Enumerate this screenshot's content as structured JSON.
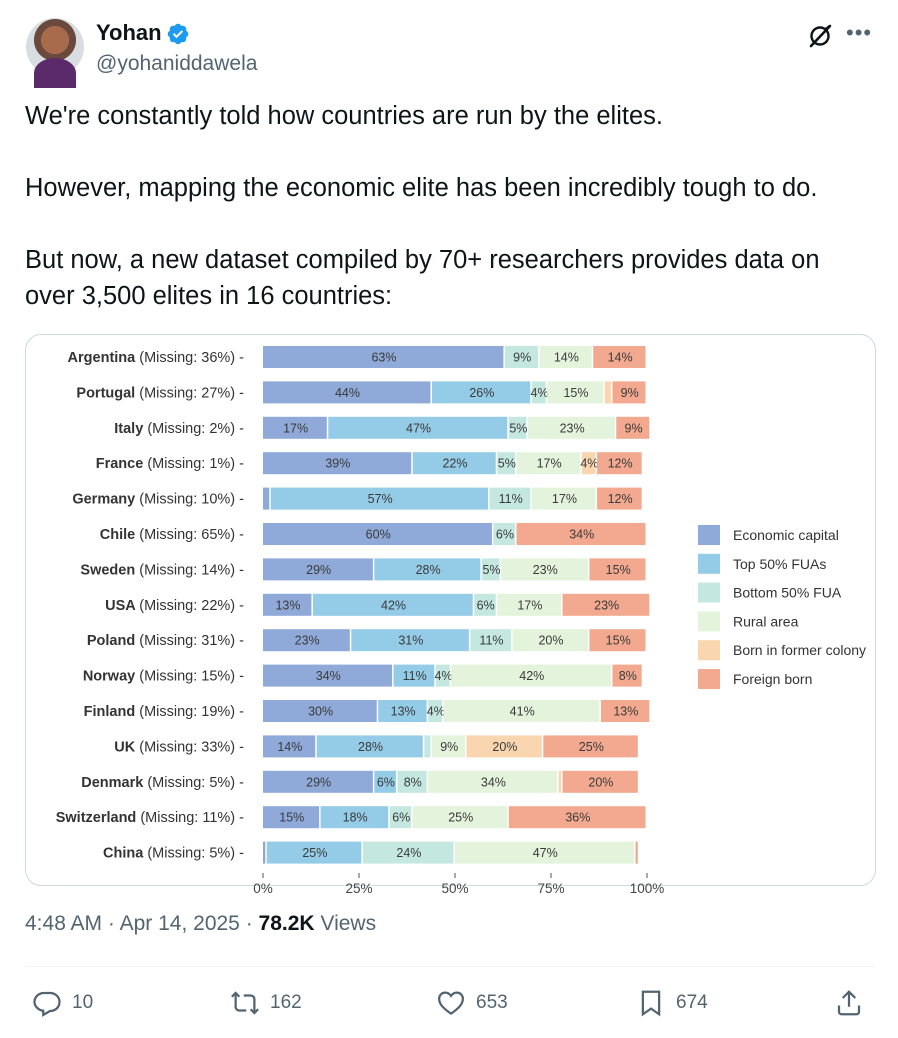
{
  "author": {
    "name": "Yohan",
    "handle": "@yohaniddawela",
    "verified_icon": "verified-badge-icon",
    "avatar": "avatar"
  },
  "tweet": {
    "paragraphs": [
      "We're constantly told how countries are run by the elites.",
      "However, mapping the economic elite has been incredibly tough to do.",
      "But now, a new dataset compiled by 70+ researchers provides data on over 3,500 elites in 16 countries:"
    ]
  },
  "meta": {
    "time": "4:48 AM",
    "sep1": "·",
    "date": "Apr 14, 2025",
    "sep2": "·",
    "views_count": "78.2K",
    "views_label": "Views"
  },
  "actions": {
    "replies": "10",
    "reposts": "162",
    "likes": "653",
    "bookmarks": "674"
  },
  "colors": {
    "Economic capital": "#8fa9d8",
    "Top 50% FUAs": "#94cbe6",
    "Bottom 50% FUA": "#c4e8df",
    "Rural area": "#e3f3dc",
    "Born in former colony": "#f9d6b0",
    "Foreign born": "#f2a98f"
  },
  "chart_data": {
    "type": "bar",
    "orientation": "horizontal",
    "stacked": true,
    "categories": [
      "Argentina (Missing: 36%)",
      "Portugal (Missing: 27%)",
      "Italy (Missing: 2%)",
      "France (Missing: 1%)",
      "Germany (Missing: 10%)",
      "Chile (Missing: 65%)",
      "Sweden (Missing: 14%)",
      "USA (Missing: 22%)",
      "Poland (Missing: 31%)",
      "Norway (Missing: 15%)",
      "Finland (Missing: 19%)",
      "UK (Missing: 33%)",
      "Denmark (Missing: 5%)",
      "Switzerland (Missing: 11%)",
      "China (Missing: 5%)"
    ],
    "country_names": [
      "Argentina",
      "Portugal",
      "Italy",
      "France",
      "Germany",
      "Chile",
      "Sweden",
      "USA",
      "Poland",
      "Norway",
      "Finland",
      "UK",
      "Denmark",
      "Switzerland",
      "China"
    ],
    "missing_labels": [
      "(Missing: 36%) -",
      "(Missing: 27%) -",
      "(Missing: 2%) -",
      "(Missing: 1%) -",
      "(Missing: 10%) -",
      "(Missing: 65%) -",
      "(Missing: 14%) -",
      "(Missing: 22%) -",
      "(Missing: 31%) -",
      "(Missing: 15%) -",
      "(Missing: 19%) -",
      "(Missing: 33%) -",
      "(Missing: 5%) -",
      "(Missing: 11%) -",
      "(Missing: 5%) -"
    ],
    "series": [
      {
        "name": "Economic capital",
        "values": [
          63,
          44,
          17,
          39,
          2,
          60,
          29,
          13,
          23,
          34,
          30,
          14,
          29,
          15,
          1
        ]
      },
      {
        "name": "Top 50% FUAs",
        "values": [
          0,
          26,
          47,
          22,
          57,
          0,
          28,
          42,
          31,
          11,
          13,
          28,
          6,
          18,
          25
        ]
      },
      {
        "name": "Bottom 50% FUA",
        "values": [
          9,
          4,
          5,
          5,
          11,
          6,
          5,
          6,
          11,
          4,
          4,
          2,
          8,
          6,
          24
        ]
      },
      {
        "name": "Rural area",
        "values": [
          14,
          15,
          23,
          17,
          17,
          0,
          23,
          17,
          20,
          42,
          41,
          9,
          34,
          25,
          47
        ]
      },
      {
        "name": "Born in former colony",
        "values": [
          0,
          2,
          0,
          4,
          0,
          0,
          0,
          0,
          0,
          0,
          0,
          20,
          1,
          0,
          0
        ]
      },
      {
        "name": "Foreign born",
        "values": [
          14,
          9,
          9,
          12,
          12,
          34,
          15,
          23,
          15,
          8,
          13,
          25,
          20,
          36,
          1
        ]
      }
    ],
    "data_labels": [
      [
        "63%",
        "",
        "9%",
        "14%",
        "",
        "14%"
      ],
      [
        "44%",
        "26%",
        "4%",
        "15%",
        "",
        "9%"
      ],
      [
        "17%",
        "47%",
        "5%",
        "23%",
        "",
        "9%"
      ],
      [
        "39%",
        "22%",
        "5%",
        "17%",
        "4%",
        "12%"
      ],
      [
        "",
        "57%",
        "11%",
        "17%",
        "",
        "12%"
      ],
      [
        "60%",
        "",
        "6%",
        "",
        "",
        "34%"
      ],
      [
        "29%",
        "28%",
        "5%",
        "23%",
        "",
        "15%"
      ],
      [
        "13%",
        "42%",
        "6%",
        "17%",
        "",
        "23%"
      ],
      [
        "23%",
        "31%",
        "11%",
        "20%",
        "",
        "15%"
      ],
      [
        "34%",
        "11%",
        "4%",
        "42%",
        "",
        "8%"
      ],
      [
        "30%",
        "13%",
        "4%",
        "41%",
        "",
        "13%"
      ],
      [
        "14%",
        "28%",
        "",
        "9%",
        "20%",
        "25%"
      ],
      [
        "29%",
        "6%",
        "8%",
        "34%",
        "",
        "20%"
      ],
      [
        "15%",
        "18%",
        "6%",
        "25%",
        "",
        "36%"
      ],
      [
        "",
        "25%",
        "24%",
        "47%",
        "",
        ""
      ]
    ],
    "xlim": [
      0,
      100
    ],
    "x_ticks": [
      "0%",
      "25%",
      "50%",
      "75%",
      "100%"
    ],
    "x_tick_values": [
      0,
      25,
      50,
      75,
      100
    ],
    "legend_position": "right",
    "grid": false
  }
}
